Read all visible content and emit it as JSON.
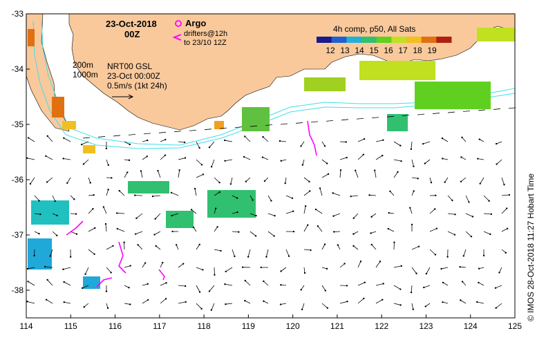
{
  "map": {
    "date_title": "23-Oct-2018",
    "time_title": "00Z",
    "legend_argo": "Argo",
    "legend_drifters_1": "drifters@12h",
    "legend_drifters_2": "to 23/10 12Z",
    "depth_200": "200m",
    "depth_1000": "1000m",
    "product_1": "NRT00 GSL",
    "product_2": "23-Oct 00:00Z",
    "scale_label": "0.5m/s (1kt 24h)",
    "colorbar_title": "4h comp, p50, All Sats",
    "colorbar_ticks": [
      "12",
      "13",
      "14",
      "15",
      "16",
      "17",
      "18",
      "19"
    ],
    "credit": "© IMOS 28-Oct-2018 11:27 Hobart Time",
    "x_ticks": [
      "114",
      "115",
      "116",
      "117",
      "118",
      "119",
      "120",
      "121",
      "122",
      "123",
      "124",
      "125"
    ],
    "y_ticks": [
      "-33",
      "-34",
      "-35",
      "-36",
      "-37",
      "-38"
    ],
    "x_range": [
      114,
      125
    ],
    "y_range": [
      -38.5,
      -33
    ],
    "colors": {
      "land": "#F9C99C",
      "isobath": "#40E0E8",
      "argo": "#FF00FF",
      "drifter": "#FF00FF"
    },
    "colormap": [
      "#1a1a8c",
      "#1f5fd0",
      "#20b0d8",
      "#30c070",
      "#60d020",
      "#c0e020",
      "#f0c020",
      "#e07010",
      "#b02010"
    ]
  }
}
